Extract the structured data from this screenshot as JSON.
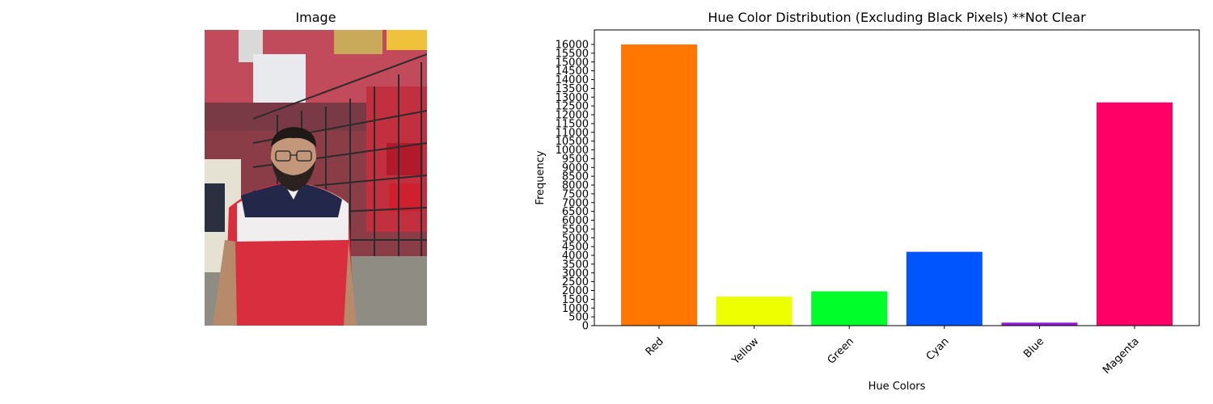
{
  "panels": {
    "image_title": "Image"
  },
  "chart_data": {
    "type": "bar",
    "title": "Hue Color Distribution (Excluding Black Pixels) **Not Clear",
    "xlabel": "Hue Colors",
    "ylabel": "Frequency",
    "categories": [
      "Red",
      "Yellow",
      "Green",
      "Cyan",
      "Blue",
      "Magenta"
    ],
    "values": [
      16000,
      1650,
      1950,
      4200,
      170,
      12700
    ],
    "bar_colors": [
      "#ff7700",
      "#eeff00",
      "#00ff2a",
      "#0055ff",
      "#9915dd",
      "#ff0066"
    ],
    "ylim": [
      0,
      16000
    ],
    "yticks": [
      0,
      500,
      1000,
      1500,
      2000,
      2500,
      3000,
      3500,
      4000,
      4500,
      5000,
      5500,
      6000,
      6500,
      7000,
      7500,
      8000,
      8500,
      9000,
      9500,
      10000,
      10500,
      11000,
      11500,
      12000,
      12500,
      13000,
      13500,
      14000,
      14500,
      15000,
      15500,
      16000
    ],
    "grid": false,
    "legend": "none"
  }
}
